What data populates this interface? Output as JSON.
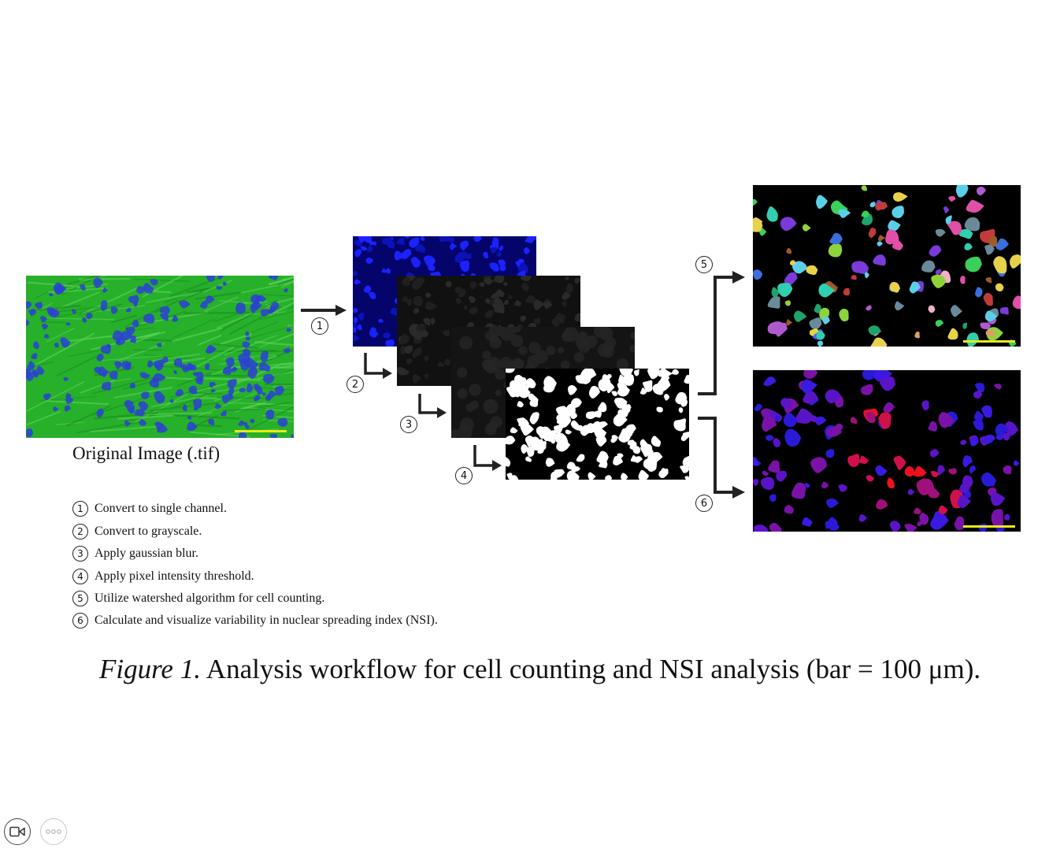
{
  "original_caption": "Original Image (.tif)",
  "markers": [
    "1",
    "2",
    "3",
    "4",
    "5",
    "6"
  ],
  "steps": [
    {
      "num": "1",
      "text": "Convert to single channel."
    },
    {
      "num": "2",
      "text": "Convert to grayscale."
    },
    {
      "num": "3",
      "text": "Apply gaussian blur."
    },
    {
      "num": "4",
      "text": "Apply pixel intensity threshold."
    },
    {
      "num": "5",
      "text": "Utilize watershed algorithm for cell counting."
    },
    {
      "num": "6",
      "text": "Calculate and visualize variability in nuclear spreading index (NSI)."
    }
  ],
  "figure_caption": {
    "label": "Figure 1.",
    "text": " Analysis workflow for cell counting and NSI analysis (bar = 100 μm)."
  },
  "colors": {
    "tissue_green": "#27b02a",
    "nucleus_blue": "#2b3fd6",
    "scale_bar_yellow": "#e8e81a",
    "arrow": "#222222"
  },
  "icons": [
    "video-camera-icon",
    "more-options-icon"
  ]
}
